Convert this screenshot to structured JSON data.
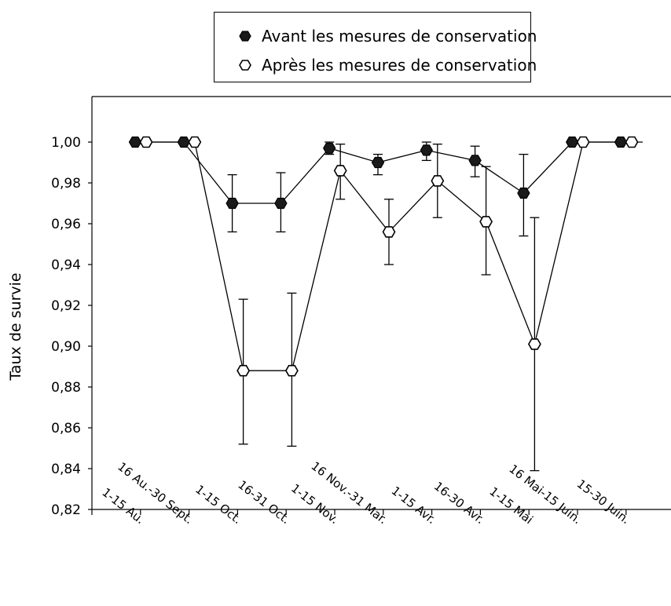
{
  "chart_data": {
    "type": "line",
    "title": "",
    "xlabel": "",
    "ylabel": "Taux de survie",
    "ylim": [
      0.82,
      1.0
    ],
    "y_ticks": [
      "0,82",
      "0,84",
      "0,86",
      "0,88",
      "0,90",
      "0,92",
      "0,94",
      "0,96",
      "0,98",
      "1,00"
    ],
    "categories": [
      "1-15 Au.",
      "16 Au.-30 Sept.",
      "1-15 Oct.",
      "16-31 Oct.",
      "1-15 Nov.",
      "16 Nov.-31 Mar.",
      "1-15 Avr.",
      "16-30 Avr.",
      "1-15 Mai",
      "16 Mai-15 Juin.",
      "15-30 Juin."
    ],
    "grid": false,
    "legend_position": "top-center",
    "series": [
      {
        "name": "Avant les mesures de conservation",
        "marker": "filled-hexagon",
        "color": "#1a1a1a",
        "values": [
          1.0,
          1.0,
          0.97,
          0.97,
          0.997,
          0.99,
          0.996,
          0.991,
          0.975,
          1.0,
          1.0
        ],
        "err_low": [
          null,
          null,
          0.956,
          0.956,
          0.994,
          0.984,
          0.991,
          0.983,
          0.954,
          null,
          null
        ],
        "err_high": [
          null,
          null,
          0.984,
          0.985,
          1.0,
          0.994,
          1.0,
          0.998,
          0.994,
          null,
          null
        ]
      },
      {
        "name": "Après les mesures de conservation",
        "marker": "open-hexagon",
        "color": "#ffffff",
        "values": [
          1.0,
          1.0,
          0.888,
          0.888,
          0.986,
          0.956,
          0.981,
          0.961,
          0.901,
          1.0,
          1.0
        ],
        "err_low": [
          null,
          null,
          0.852,
          0.851,
          0.972,
          0.94,
          0.963,
          0.935,
          0.839,
          null,
          null
        ],
        "err_high": [
          null,
          null,
          0.923,
          0.926,
          0.999,
          0.972,
          0.999,
          0.988,
          0.963,
          null,
          null
        ]
      }
    ]
  }
}
